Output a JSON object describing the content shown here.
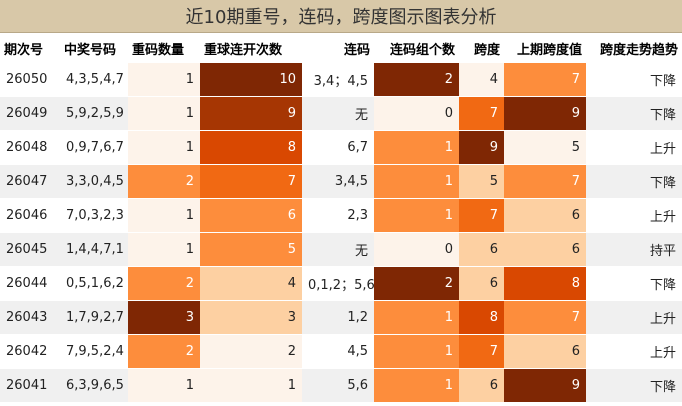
{
  "title": "近10期重号，连码，跨度图示图表分析",
  "headers": [
    "期次号",
    "中奖号码",
    "重码数量",
    "重球连开次数",
    "连码",
    "连码组个数",
    "跨度",
    "上期跨度值",
    "跨度走势趋势"
  ],
  "colors": {
    "c0": "#fdf3ea",
    "c1": "#fdd0a2",
    "c2": "#fd8d3c",
    "c3": "#f16913",
    "c4": "#d94801",
    "c5": "#a63603",
    "c6": "#7f2704"
  },
  "rows": [
    {
      "issue": "26050",
      "numbers": "4,3,5,4,7",
      "repeat_count": "1",
      "repeat_streak": "10",
      "consecutive": "3,4；4,5",
      "consec_groups": "2",
      "span": "4",
      "prev_span": "7",
      "trend": "下降",
      "bg": {
        "repeat_count": "c0",
        "repeat_streak": "c6",
        "consec_groups": "c6",
        "span": "c0",
        "prev_span": "c2"
      }
    },
    {
      "issue": "26049",
      "numbers": "5,9,2,5,9",
      "repeat_count": "1",
      "repeat_streak": "9",
      "consecutive": "无",
      "consec_groups": "0",
      "span": "7",
      "prev_span": "9",
      "trend": "下降",
      "bg": {
        "repeat_count": "c0",
        "repeat_streak": "c5",
        "consec_groups": "c0",
        "span": "c3",
        "prev_span": "c6"
      }
    },
    {
      "issue": "26048",
      "numbers": "0,9,7,6,7",
      "repeat_count": "1",
      "repeat_streak": "8",
      "consecutive": "6,7",
      "consec_groups": "1",
      "span": "9",
      "prev_span": "5",
      "trend": "上升",
      "bg": {
        "repeat_count": "c0",
        "repeat_streak": "c4",
        "consec_groups": "c2",
        "span": "c6",
        "prev_span": "c0"
      }
    },
    {
      "issue": "26047",
      "numbers": "3,3,0,4,5",
      "repeat_count": "2",
      "repeat_streak": "7",
      "consecutive": "3,4,5",
      "consec_groups": "1",
      "span": "5",
      "prev_span": "7",
      "trend": "下降",
      "bg": {
        "repeat_count": "c2",
        "repeat_streak": "c3",
        "consec_groups": "c2",
        "span": "c1",
        "prev_span": "c2"
      }
    },
    {
      "issue": "26046",
      "numbers": "7,0,3,2,3",
      "repeat_count": "1",
      "repeat_streak": "6",
      "consecutive": "2,3",
      "consec_groups": "1",
      "span": "7",
      "prev_span": "6",
      "trend": "上升",
      "bg": {
        "repeat_count": "c0",
        "repeat_streak": "c2",
        "consec_groups": "c2",
        "span": "c3",
        "prev_span": "c1"
      }
    },
    {
      "issue": "26045",
      "numbers": "1,4,4,7,1",
      "repeat_count": "1",
      "repeat_streak": "5",
      "consecutive": "无",
      "consec_groups": "0",
      "span": "6",
      "prev_span": "6",
      "trend": "持平",
      "bg": {
        "repeat_count": "c0",
        "repeat_streak": "c2",
        "consec_groups": "c0",
        "span": "c1",
        "prev_span": "c1"
      }
    },
    {
      "issue": "26044",
      "numbers": "0,5,1,6,2",
      "repeat_count": "2",
      "repeat_streak": "4",
      "consecutive": "0,1,2；5,6",
      "consec_groups": "2",
      "span": "6",
      "prev_span": "8",
      "trend": "下降",
      "bg": {
        "repeat_count": "c2",
        "repeat_streak": "c1",
        "consec_groups": "c6",
        "span": "c1",
        "prev_span": "c4"
      }
    },
    {
      "issue": "26043",
      "numbers": "1,7,9,2,7",
      "repeat_count": "3",
      "repeat_streak": "3",
      "consecutive": "1,2",
      "consec_groups": "1",
      "span": "8",
      "prev_span": "7",
      "trend": "上升",
      "bg": {
        "repeat_count": "c6",
        "repeat_streak": "c1",
        "consec_groups": "c2",
        "span": "c4",
        "prev_span": "c2"
      }
    },
    {
      "issue": "26042",
      "numbers": "7,9,5,2,4",
      "repeat_count": "2",
      "repeat_streak": "2",
      "consecutive": "4,5",
      "consec_groups": "1",
      "span": "7",
      "prev_span": "6",
      "trend": "上升",
      "bg": {
        "repeat_count": "c2",
        "repeat_streak": "c0",
        "consec_groups": "c2",
        "span": "c3",
        "prev_span": "c1"
      }
    },
    {
      "issue": "26041",
      "numbers": "6,3,9,6,5",
      "repeat_count": "1",
      "repeat_streak": "1",
      "consecutive": "5,6",
      "consec_groups": "1",
      "span": "6",
      "prev_span": "9",
      "trend": "下降",
      "bg": {
        "repeat_count": "c0",
        "repeat_streak": "c0",
        "consec_groups": "c2",
        "span": "c1",
        "prev_span": "c6"
      }
    }
  ]
}
